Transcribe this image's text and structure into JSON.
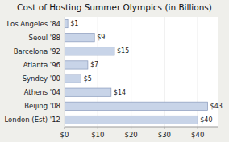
{
  "chart_data": {
    "type": "bar",
    "orientation": "horizontal",
    "title": "Cost of Hosting Summer Olympics (in Billions)",
    "categories": [
      "Los Angeles '84",
      "Seoul '88",
      "Barcelona '92",
      "Atlanta '96",
      "Syndey '00",
      "Athens '04",
      "Beijing '08",
      "London (Est) '12"
    ],
    "values": [
      1,
      9,
      15,
      7,
      5,
      14,
      43,
      40
    ],
    "value_labels": [
      "$1",
      "$9",
      "$15",
      "$7",
      "$5",
      "$14",
      "$43",
      "$40"
    ],
    "data_labels": true,
    "color": "#c8d4e8",
    "xlim": [
      0,
      46
    ],
    "xticks": [
      {
        "value": 0,
        "label": "$0"
      },
      {
        "value": 10,
        "label": "$10"
      },
      {
        "value": 20,
        "label": "$20"
      },
      {
        "value": 30,
        "label": "$30"
      },
      {
        "value": 40,
        "label": "$40"
      }
    ],
    "grid": true
  }
}
